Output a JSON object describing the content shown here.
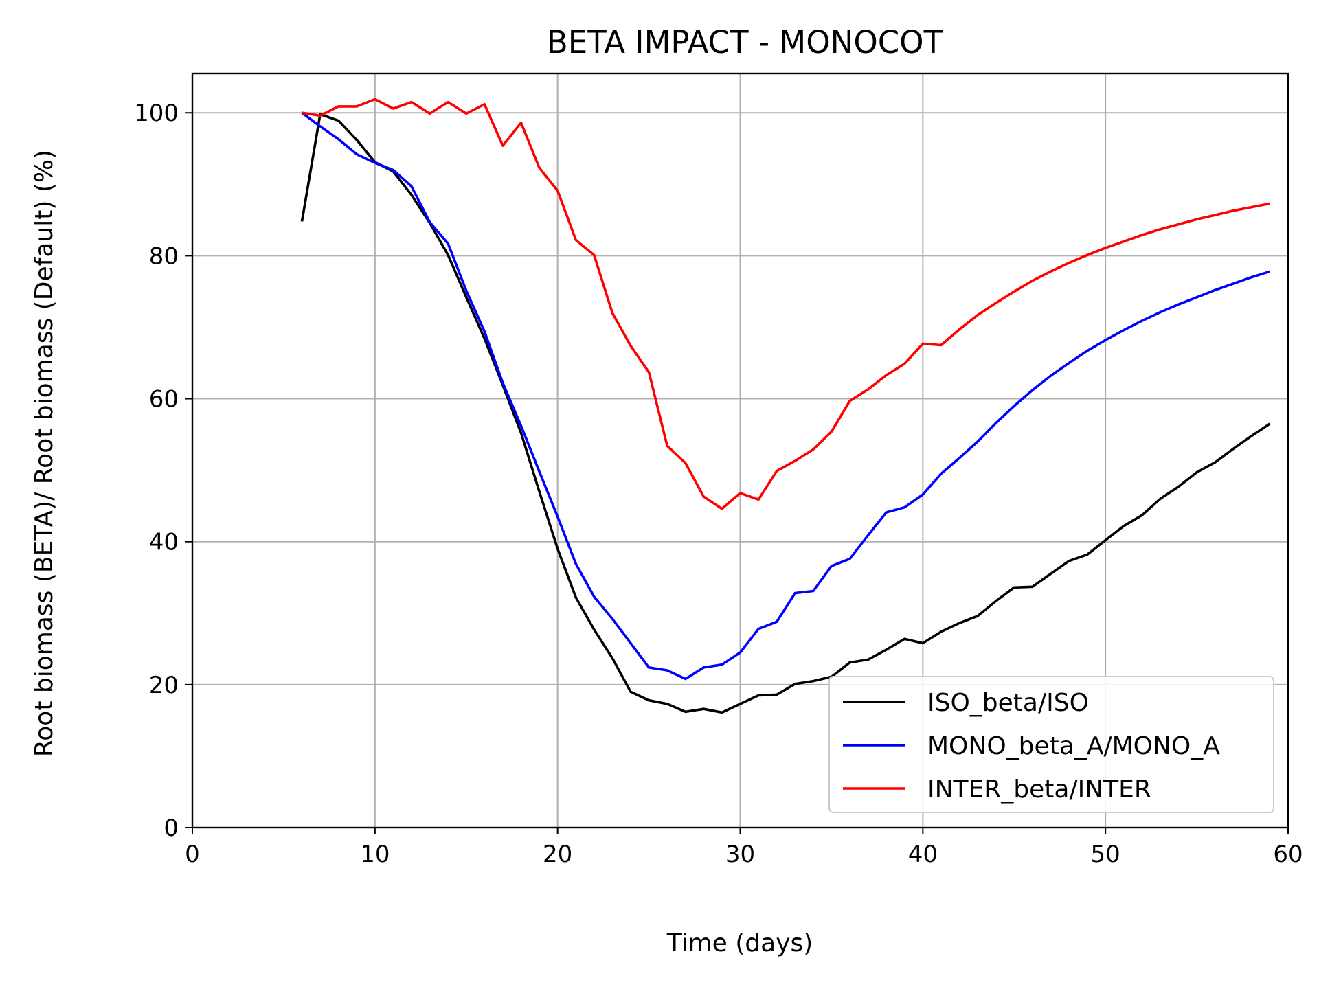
{
  "chart_data": {
    "type": "line",
    "title": "BETA IMPACT - MONOCOT",
    "xlabel": "Time (days)",
    "ylabel": "Root biomass (BETA)/ Root biomass (Default) (%)",
    "xlim": [
      0,
      60
    ],
    "ylim": [
      0,
      105.5
    ],
    "xticks": [
      "0",
      "10",
      "20",
      "30",
      "40",
      "50",
      "60"
    ],
    "yticks": [
      "0",
      "20",
      "40",
      "60",
      "80",
      "100"
    ],
    "xtick_values": [
      0,
      10,
      20,
      30,
      40,
      50,
      60
    ],
    "ytick_values": [
      0,
      20,
      40,
      60,
      80,
      100
    ],
    "grid": true,
    "legend_position": "lower-right",
    "series": [
      {
        "name": "ISO_beta/ISO",
        "color": "#000000",
        "x": [
          6,
          7,
          8,
          9,
          10,
          11,
          12,
          13,
          14,
          15,
          16,
          17,
          18,
          19,
          20,
          21,
          22,
          23,
          24,
          25,
          26,
          27,
          28,
          29,
          30,
          31,
          32,
          33,
          34,
          35,
          36,
          37,
          38,
          39,
          40,
          41,
          42,
          43,
          44,
          45,
          46,
          47,
          48,
          49,
          50,
          51,
          52,
          53,
          54,
          55,
          56,
          57,
          58,
          59
        ],
        "y": [
          84.8,
          99.8,
          98.9,
          96.2,
          93.1,
          91.8,
          88.5,
          84.6,
          80.1,
          74.2,
          68.4,
          61.9,
          55.2,
          47.0,
          39.0,
          32.2,
          27.7,
          23.7,
          19.0,
          17.8,
          17.3,
          16.2,
          16.6,
          16.1,
          17.3,
          18.5,
          18.6,
          20.1,
          20.5,
          21.1,
          23.1,
          23.5,
          24.9,
          26.4,
          25.8,
          27.4,
          28.6,
          29.6,
          31.7,
          33.6,
          33.7,
          35.5,
          37.3,
          38.2,
          40.2,
          42.2,
          43.7,
          46.0,
          47.7,
          49.7,
          51.1,
          53.0,
          54.8,
          56.5
        ]
      },
      {
        "name": "MONO_beta_A/MONO_A",
        "color": "#0000ff",
        "x": [
          6,
          7,
          8,
          9,
          10,
          11,
          12,
          13,
          14,
          15,
          16,
          17,
          18,
          19,
          20,
          21,
          22,
          23,
          24,
          25,
          26,
          27,
          28,
          29,
          30,
          31,
          32,
          33,
          34,
          35,
          36,
          37,
          38,
          39,
          40,
          41,
          42,
          43,
          44,
          45,
          46,
          47,
          48,
          49,
          50,
          51,
          52,
          53,
          54,
          55,
          56,
          57,
          58,
          59
        ],
        "y": [
          100.0,
          98.1,
          96.3,
          94.2,
          93.0,
          92.0,
          89.7,
          84.7,
          81.7,
          75.1,
          69.4,
          62.2,
          56.2,
          49.8,
          43.5,
          36.9,
          32.3,
          29.2,
          25.8,
          22.4,
          22.0,
          20.8,
          22.4,
          22.8,
          24.5,
          27.8,
          28.8,
          32.8,
          33.1,
          36.6,
          37.6,
          40.9,
          44.1,
          44.8,
          46.6,
          49.5,
          51.7,
          54.0,
          56.6,
          59.0,
          61.2,
          63.2,
          65.0,
          66.7,
          68.2,
          69.6,
          70.9,
          72.1,
          73.2,
          74.2,
          75.2,
          76.1,
          77.0,
          77.8
        ]
      },
      {
        "name": "INTER_beta/INTER",
        "color": "#ff0000",
        "x": [
          6,
          7,
          8,
          9,
          10,
          11,
          12,
          13,
          14,
          15,
          16,
          17,
          18,
          19,
          20,
          21,
          22,
          23,
          24,
          25,
          26,
          27,
          28,
          29,
          30,
          31,
          32,
          33,
          34,
          35,
          36,
          37,
          38,
          39,
          40,
          41,
          42,
          43,
          44,
          45,
          46,
          47,
          48,
          49,
          50,
          51,
          52,
          53,
          54,
          55,
          56,
          57,
          58,
          59
        ],
        "y": [
          100.0,
          99.6,
          100.9,
          100.9,
          101.9,
          100.6,
          101.5,
          99.9,
          101.5,
          99.9,
          101.2,
          95.4,
          98.6,
          92.3,
          89.1,
          82.2,
          80.1,
          72.0,
          67.4,
          63.7,
          53.4,
          51.0,
          46.3,
          44.6,
          46.8,
          45.9,
          49.9,
          51.3,
          52.9,
          55.4,
          59.7,
          61.3,
          63.3,
          64.9,
          67.7,
          67.5,
          69.7,
          71.7,
          73.4,
          75.0,
          76.5,
          77.8,
          79.0,
          80.1,
          81.1,
          82.0,
          82.9,
          83.7,
          84.4,
          85.1,
          85.7,
          86.3,
          86.8,
          87.3
        ]
      }
    ]
  }
}
